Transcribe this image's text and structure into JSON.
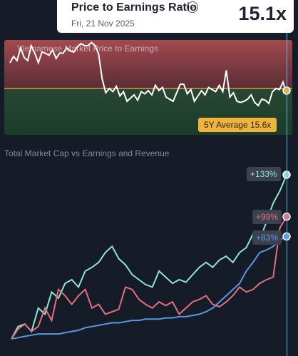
{
  "tooltip": {
    "title": "Price to Earnings Ratio",
    "help_icon": "question-circle-icon",
    "help_glyph": "?",
    "date": "Fri, 21 Nov 2025",
    "value": "15.1x"
  },
  "pe_chart": {
    "title": "Vietnamese Market Price to Earnings",
    "average_label": "5Y Average 15.6x",
    "colors": {
      "above": "#a24a4f",
      "below": "#274734",
      "line": "#ffffff",
      "average": "#efb53a"
    }
  },
  "mc_chart": {
    "title": "Total Market Cap vs Earnings and Revenue",
    "badges": [
      {
        "label": "+133%",
        "color": "#8ee6d2"
      },
      {
        "label": "+99%",
        "color": "#e2707c"
      },
      {
        "label": "+83%",
        "color": "#5a98e0"
      }
    ]
  },
  "chart_data": [
    {
      "type": "line",
      "title": "Vietnamese Market Price to Earnings",
      "average": 15.6,
      "current": 15.1,
      "y": [
        18.0,
        18.6,
        18.2,
        19.4,
        18.5,
        18.2,
        19.6,
        18.9,
        18.0,
        19.0,
        18.9,
        18.7,
        19.2,
        18.4,
        18.9,
        18.9,
        19.4,
        19.1,
        19.0,
        19.5,
        19.8,
        19.6,
        19.6,
        19.9,
        19.6,
        18.8,
        16.5,
        15.2,
        15.6,
        15.3,
        15.8,
        14.9,
        15.3,
        14.4,
        14.7,
        15.0,
        14.5,
        15.3,
        15.1,
        15.4,
        15.0,
        15.9,
        15.4,
        15.7,
        14.8,
        14.6,
        14.4,
        15.2,
        16.0,
        16.0,
        15.1,
        15.5,
        14.4,
        14.9,
        15.4,
        15.0,
        15.7,
        15.5,
        15.3,
        15.9,
        15.3,
        17.3,
        14.8,
        15.2,
        14.4,
        14.3,
        14.4,
        14.6,
        15.0,
        14.3,
        14.0,
        14.6,
        14.5,
        14.2,
        15.3,
        15.6,
        15.5,
        16.2,
        15.1
      ]
    },
    {
      "type": "line",
      "title": "Total Market Cap vs Earnings and Revenue",
      "series": [
        {
          "name": "+133%",
          "values": [
            0,
            10,
            12,
            6,
            25,
            20,
            38,
            33,
            45,
            48,
            42,
            55,
            58,
            62,
            70,
            75,
            65,
            60,
            52,
            48,
            44,
            42,
            55,
            50,
            45,
            48,
            46,
            52,
            58,
            62,
            58,
            64,
            67,
            62,
            70,
            74,
            85,
            80,
            95,
            110,
            120,
            133
          ]
        },
        {
          "name": "+99%",
          "values": [
            0,
            8,
            12,
            6,
            10,
            25,
            15,
            40,
            35,
            28,
            35,
            40,
            25,
            28,
            20,
            22,
            24,
            42,
            40,
            32,
            28,
            25,
            30,
            27,
            30,
            20,
            25,
            30,
            32,
            35,
            28,
            26,
            30,
            35,
            42,
            38,
            40,
            45,
            48,
            50,
            90,
            99
          ]
        },
        {
          "name": "+83%",
          "values": [
            0,
            1,
            2,
            3,
            4,
            4,
            4,
            4,
            5,
            6,
            7,
            9,
            10,
            11,
            12,
            13,
            13,
            14,
            15,
            15,
            16,
            16,
            16,
            17,
            17,
            18,
            18,
            19,
            20,
            22,
            25,
            30,
            35,
            40,
            45,
            55,
            62,
            70,
            72,
            75,
            80,
            83
          ]
        }
      ]
    }
  ]
}
